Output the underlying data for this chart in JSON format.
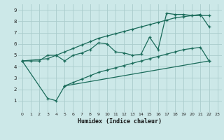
{
  "xlabel": "Humidex (Indice chaleur)",
  "bg_color": "#cce8e8",
  "grid_color": "#aacccc",
  "line_color": "#1a6b5a",
  "xlim": [
    -0.5,
    23.5
  ],
  "ylim": [
    0,
    9.5
  ],
  "xticks": [
    0,
    1,
    2,
    3,
    4,
    5,
    6,
    7,
    8,
    9,
    10,
    11,
    12,
    13,
    14,
    15,
    16,
    17,
    18,
    19,
    20,
    21,
    22,
    23
  ],
  "yticks": [
    1,
    2,
    3,
    4,
    5,
    6,
    7,
    8,
    9
  ],
  "line1_x": [
    0,
    1,
    2,
    3,
    4,
    5,
    6,
    7,
    8,
    9,
    10,
    11,
    12,
    13,
    14,
    15,
    16,
    17,
    18,
    19,
    20,
    21,
    22
  ],
  "line1_y": [
    4.5,
    4.5,
    4.5,
    5.0,
    5.0,
    4.5,
    5.0,
    5.2,
    5.5,
    6.1,
    6.0,
    5.3,
    5.2,
    5.0,
    5.1,
    6.6,
    5.5,
    8.7,
    8.6,
    8.6,
    8.5,
    8.6,
    7.5
  ],
  "line2_x": [
    0,
    3,
    4,
    5,
    6,
    7,
    8,
    9,
    10,
    11,
    12,
    13,
    14,
    15,
    16,
    17,
    18,
    19,
    20,
    21,
    22
  ],
  "line2_y": [
    4.5,
    4.7,
    5.0,
    5.3,
    5.6,
    5.9,
    6.2,
    6.5,
    6.7,
    6.9,
    7.1,
    7.3,
    7.5,
    7.7,
    7.9,
    8.1,
    8.3,
    8.4,
    8.5,
    8.5,
    8.5
  ],
  "line3_x": [
    0,
    3,
    4,
    5,
    22
  ],
  "line3_y": [
    4.5,
    1.2,
    1.0,
    2.3,
    4.5
  ],
  "line4_x": [
    5,
    6,
    7,
    8,
    9,
    10,
    11,
    12,
    13,
    14,
    15,
    16,
    17,
    18,
    19,
    20,
    21,
    22
  ],
  "line4_y": [
    2.3,
    2.6,
    2.9,
    3.2,
    3.5,
    3.7,
    3.9,
    4.1,
    4.3,
    4.5,
    4.7,
    4.9,
    5.1,
    5.3,
    5.5,
    5.6,
    5.7,
    4.5
  ]
}
